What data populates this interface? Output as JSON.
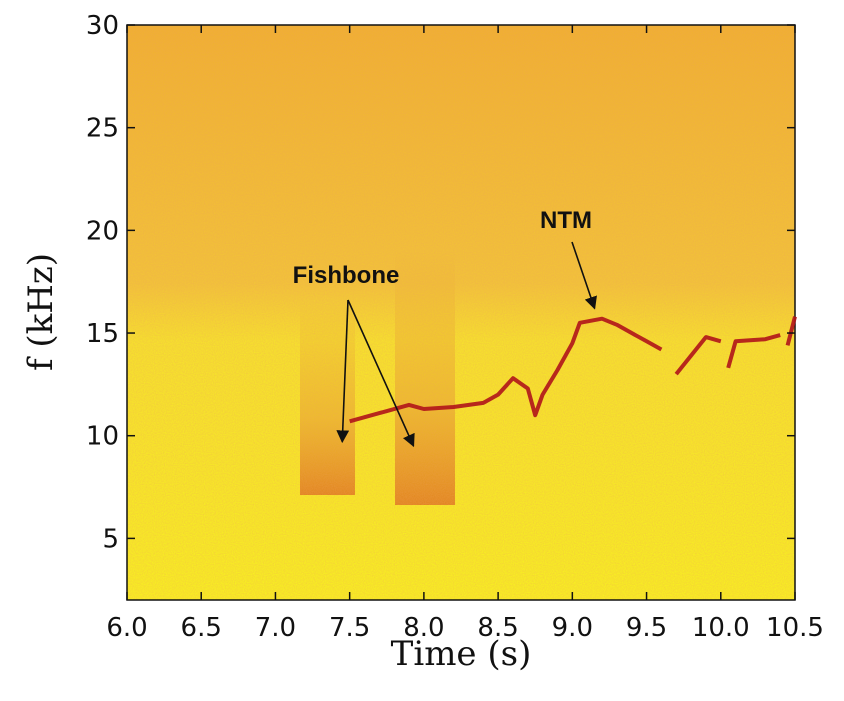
{
  "chart_data": {
    "type": "spectrogram",
    "xlabel": "Time (s)",
    "ylabel": "f (kHz)",
    "xlim": [
      6.0,
      10.5
    ],
    "xticks": [
      {
        "value": 6.0,
        "label": "6.0"
      },
      {
        "value": 6.5,
        "label": "6.5"
      },
      {
        "value": 7.0,
        "label": "7.0"
      },
      {
        "value": 7.5,
        "label": "7.5"
      },
      {
        "value": 8.0,
        "label": "8.0"
      },
      {
        "value": 8.5,
        "label": "8.5"
      },
      {
        "value": 9.0,
        "label": "9.0"
      },
      {
        "value": 9.5,
        "label": "9.5"
      },
      {
        "value": 10.0,
        "label": "10.0"
      },
      {
        "value": 10.5,
        "label": "10.5"
      }
    ],
    "ylim": [
      2,
      30
    ],
    "yticks": [
      5,
      10,
      15,
      20,
      25,
      30
    ],
    "x": [
      7.5,
      7.7,
      7.9,
      8.0,
      8.2,
      8.4,
      8.5,
      8.6,
      8.7,
      8.75,
      8.8,
      8.9,
      9.0,
      9.05,
      9.2,
      9.3,
      9.5,
      9.6,
      9.62,
      9.7,
      9.9,
      10.0,
      10.02,
      10.05,
      10.1,
      10.3,
      10.4,
      10.42,
      10.45,
      10.5
    ],
    "values": [
      10.7,
      11.1,
      11.5,
      11.3,
      11.4,
      11.6,
      12.0,
      12.8,
      12.3,
      11.0,
      12.0,
      13.2,
      14.5,
      15.5,
      15.7,
      15.4,
      14.6,
      14.2,
      null,
      13.0,
      14.8,
      14.6,
      null,
      13.3,
      14.6,
      14.7,
      14.9,
      null,
      14.4,
      15.8
    ],
    "color": "#b0141a",
    "annotations": [
      {
        "text": "Fishbone",
        "arrows": [
          [
            7.45,
            9.7
          ],
          [
            7.93,
            9.5
          ]
        ]
      },
      {
        "text": "NTM",
        "arrows": [
          [
            9.15,
            16.2
          ]
        ]
      }
    ]
  }
}
